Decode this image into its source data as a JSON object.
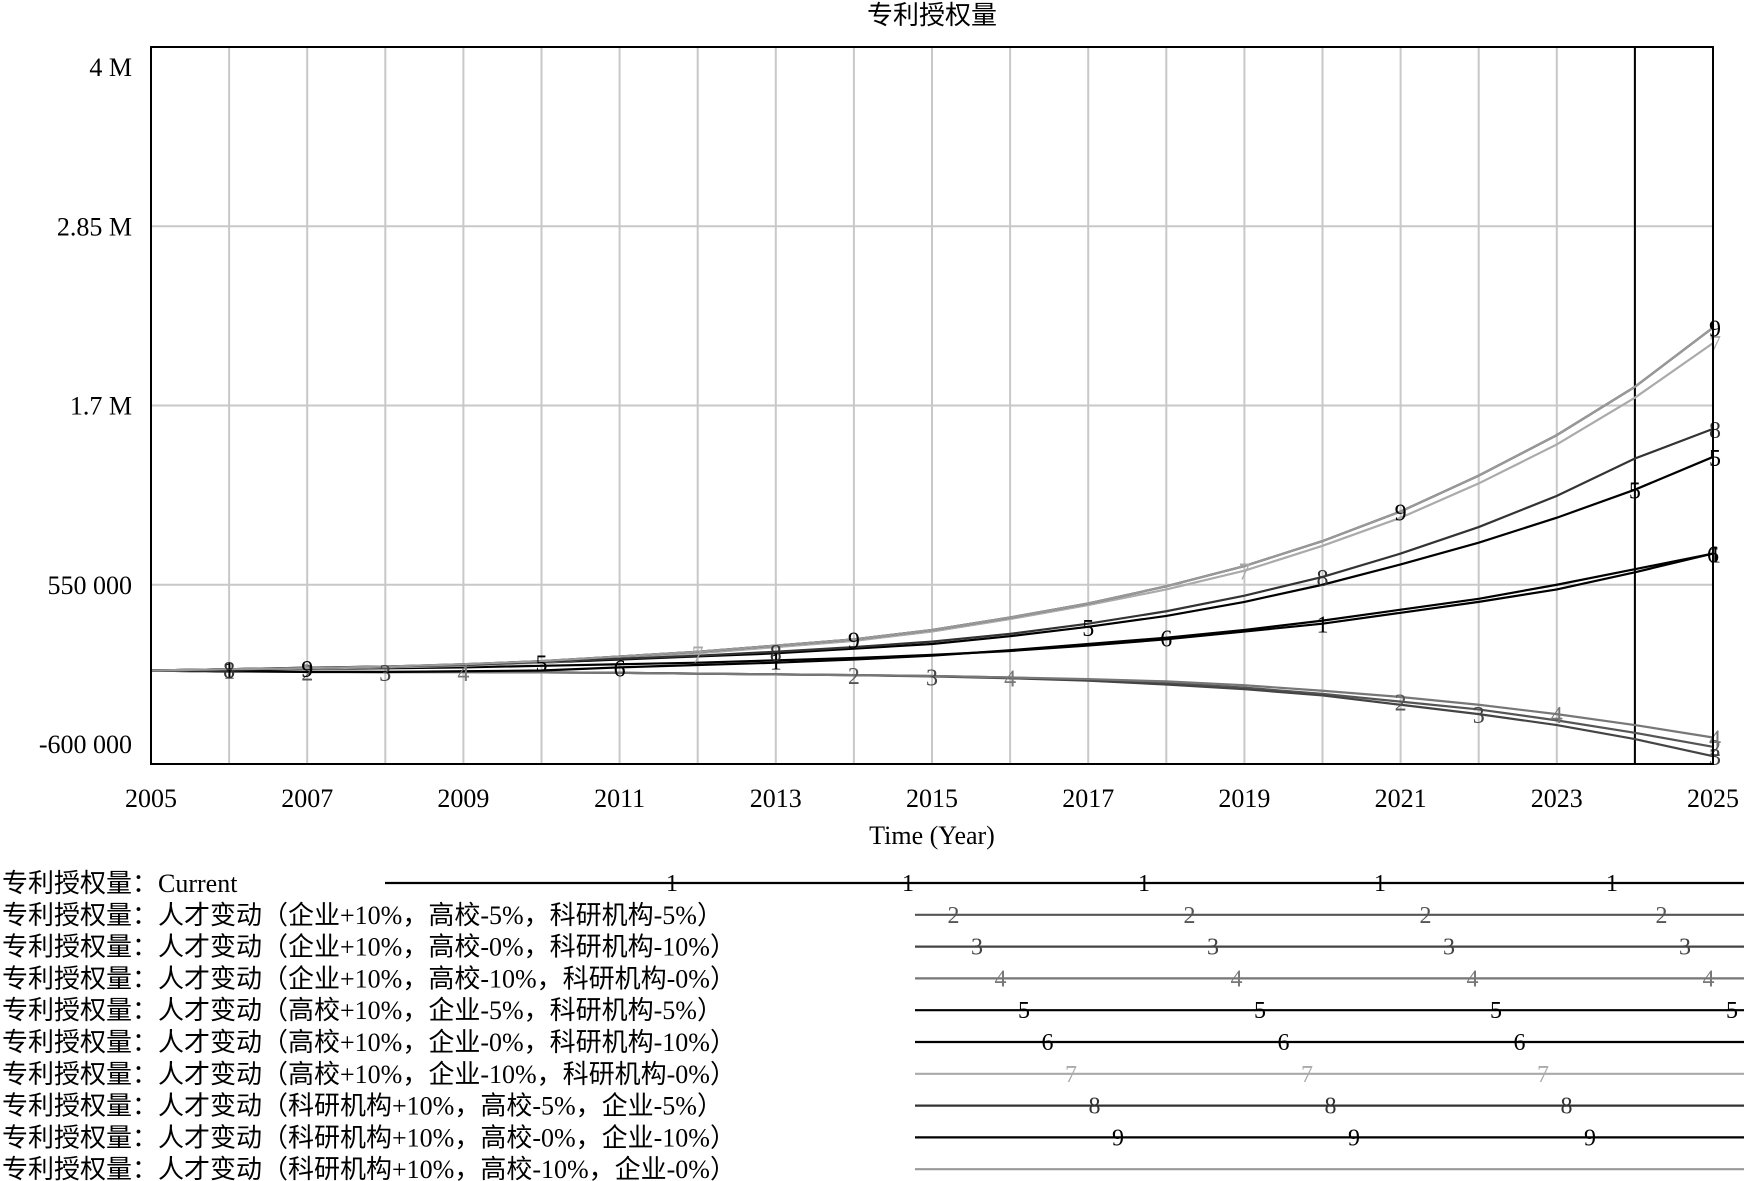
{
  "chart_data": {
    "type": "line",
    "title": "专利授权量",
    "xlabel": "Time (Year)",
    "ylabel": "",
    "xlim": [
      2005,
      2025
    ],
    "ylim": [
      -600000,
      4000000
    ],
    "y_ticks": [
      {
        "value": 4000000,
        "label": "4 M"
      },
      {
        "value": 2850000,
        "label": "2.85 M"
      },
      {
        "value": 1700000,
        "label": "1.7 M"
      },
      {
        "value": 550000,
        "label": "550 000"
      },
      {
        "value": -600000,
        "label": "-600 000"
      }
    ],
    "x_ticks": [
      "2005",
      "2007",
      "2009",
      "2011",
      "2013",
      "2015",
      "2017",
      "2019",
      "2021",
      "2023",
      "2025"
    ],
    "x": [
      2005,
      2006,
      2007,
      2008,
      2009,
      2010,
      2011,
      2012,
      2013,
      2014,
      2015,
      2016,
      2017,
      2018,
      2019,
      2020,
      2021,
      2022,
      2023,
      2024,
      2025
    ],
    "vertical_marker_x": 2024,
    "grid": true,
    "legend_position": "bottom",
    "series": [
      {
        "marker": "1",
        "name": "专利授权量：Current",
        "color": "#000000",
        "values": [
          0,
          5000,
          10000,
          14000,
          20000,
          30000,
          40000,
          50000,
          65000,
          80000,
          100000,
          125000,
          160000,
          200000,
          250000,
          300000,
          370000,
          440000,
          520000,
          630000,
          750000
        ]
      },
      {
        "marker": "2",
        "name": "专利授权量：人才变动（企业+10%，高校-5%，科研机构-5%）",
        "color": "#555555",
        "values": [
          0,
          -8000,
          -8000,
          -10000,
          -10000,
          -12000,
          -15000,
          -20000,
          -25000,
          -30000,
          -35000,
          -45000,
          -60000,
          -80000,
          -110000,
          -150000,
          -200000,
          -250000,
          -320000,
          -400000,
          -490000
        ]
      },
      {
        "marker": "3",
        "name": "专利授权量：人才变动（企业+10%，高校-0%，科研机构-10%）",
        "color": "#444444",
        "values": [
          0,
          -8000,
          -8000,
          -10000,
          -10000,
          -12000,
          -15000,
          -20000,
          -25000,
          -30000,
          -38000,
          -50000,
          -65000,
          -90000,
          -120000,
          -160000,
          -220000,
          -280000,
          -350000,
          -440000,
          -550000
        ]
      },
      {
        "marker": "4",
        "name": "专利授权量：人才变动（企业+10%，高校-10%，科研机构-0%）",
        "color": "#777777",
        "values": [
          0,
          -8000,
          -8000,
          -10000,
          -10000,
          -12000,
          -15000,
          -20000,
          -25000,
          -30000,
          -35000,
          -45000,
          -55000,
          -70000,
          -95000,
          -130000,
          -170000,
          -220000,
          -280000,
          -350000,
          -430000
        ]
      },
      {
        "marker": "5",
        "name": "专利授权量：人才变动（高校+10%，企业-5%，科研机构-5%）",
        "color": "#000000",
        "values": [
          0,
          8000,
          18000,
          25000,
          35000,
          50000,
          70000,
          90000,
          110000,
          140000,
          170000,
          220000,
          280000,
          350000,
          440000,
          550000,
          680000,
          820000,
          980000,
          1160000,
          1370000
        ]
      },
      {
        "marker": "6",
        "name": "专利授权量：人才变动（高校+10%，企业-0%，科研机构-10%）",
        "color": "#000000",
        "values": [
          0,
          0,
          -10000,
          -10000,
          -5000,
          0,
          20000,
          35000,
          50000,
          70000,
          95000,
          130000,
          170000,
          210000,
          260000,
          320000,
          390000,
          460000,
          550000,
          650000,
          750000
        ]
      },
      {
        "marker": "7",
        "name": "专利授权量：人才变动（高校+10%，企业-10%，科研机构-0%）",
        "color": "#aaaaaa",
        "values": [
          0,
          8000,
          12000,
          20000,
          30000,
          50000,
          80000,
          110000,
          150000,
          190000,
          250000,
          330000,
          420000,
          520000,
          640000,
          800000,
          980000,
          1200000,
          1450000,
          1750000,
          2100000
        ]
      },
      {
        "marker": "8",
        "name": "专利授权量：人才变动（科研机构+10%，高校-5%，企业-5%）",
        "color": "#333333",
        "values": [
          0,
          8000,
          18000,
          25000,
          35000,
          55000,
          75000,
          95000,
          120000,
          150000,
          185000,
          235000,
          300000,
          380000,
          480000,
          600000,
          750000,
          920000,
          1120000,
          1360000,
          1550000
        ]
      },
      {
        "marker": "9",
        "name": "专利授权量：人才变动（科研机构+10%，高校-0%，企业-10%）",
        "color": "#000000",
        "values": [
          0,
          8000,
          15000,
          25000,
          40000,
          60000,
          90000,
          120000,
          160000,
          200000,
          260000,
          340000,
          430000,
          540000,
          670000,
          830000,
          1020000,
          1250000,
          1510000,
          1820000,
          2200000
        ]
      },
      {
        "marker": "",
        "name": "专利授权量：人才变动（科研机构+10%，高校-10%，企业-0%）",
        "color": "#999999",
        "values": [
          0,
          8000,
          15000,
          25000,
          40000,
          60000,
          90000,
          120000,
          160000,
          200000,
          260000,
          340000,
          430000,
          540000,
          670000,
          830000,
          1020000,
          1250000,
          1510000,
          1820000,
          2200000
        ]
      }
    ]
  }
}
